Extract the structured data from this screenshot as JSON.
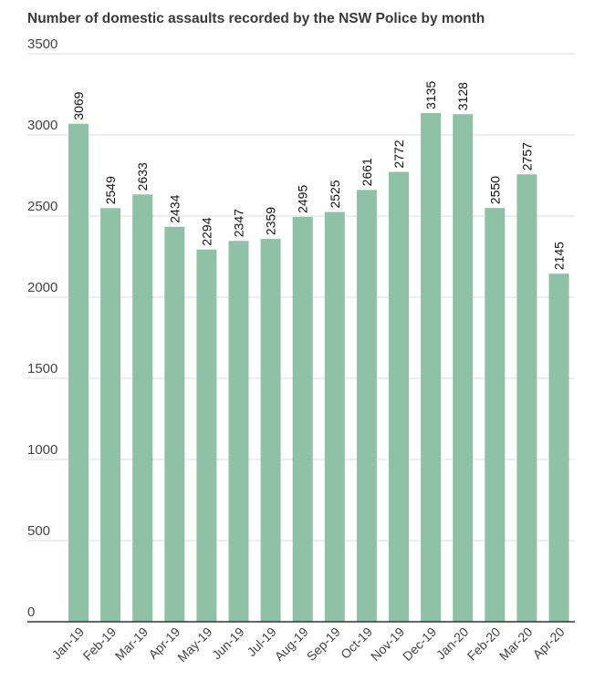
{
  "chart_data": {
    "type": "bar",
    "title": "Number of domestic assaults recorded by the NSW Police by month",
    "xlabel": "",
    "ylabel": "",
    "categories": [
      "Jan-19",
      "Feb-19",
      "Mar-19",
      "Apr-19",
      "May-19",
      "Jun-19",
      "Jul-19",
      "Aug-19",
      "Sep-19",
      "Oct-19",
      "Nov-19",
      "Dec-19",
      "Jan-20",
      "Feb-20",
      "Mar-20",
      "Apr-20"
    ],
    "values": [
      3069,
      2549,
      2633,
      2434,
      2294,
      2347,
      2359,
      2495,
      2525,
      2661,
      2772,
      3135,
      3128,
      2550,
      2757,
      2145
    ],
    "ylim": [
      0,
      3500
    ],
    "yticks": [
      0,
      500,
      1000,
      1500,
      2000,
      2500,
      3000,
      3500
    ],
    "grid": true,
    "legend": "none",
    "bar_color": "#8fc1a6",
    "data_labels": true
  }
}
